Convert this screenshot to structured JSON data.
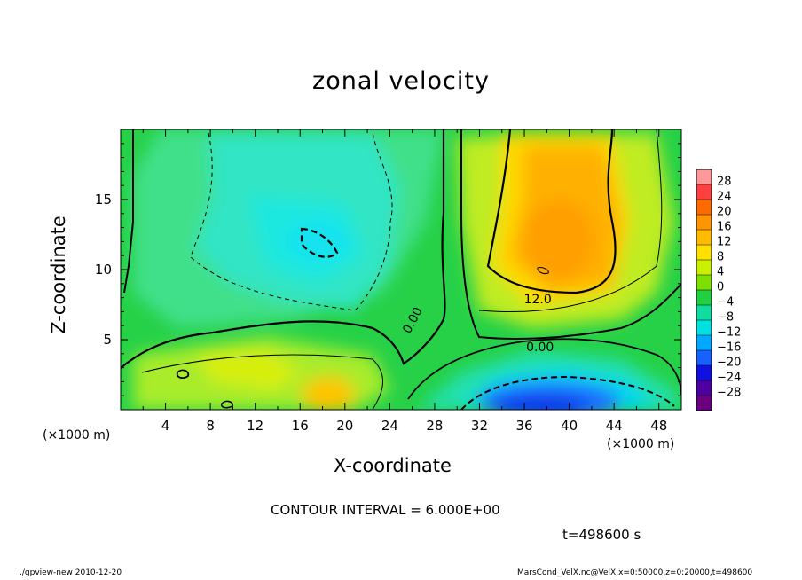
{
  "chart_data": {
    "type": "heatmap",
    "title": "zonal velocity",
    "xlabel": "X-coordinate",
    "ylabel": "Z-coordinate",
    "x_unit_left": "(×1000 m)",
    "x_unit_right": "(×1000 m)",
    "xlim": [
      0,
      50
    ],
    "ylim": [
      0,
      20
    ],
    "x_ticks": [
      4,
      8,
      12,
      16,
      20,
      24,
      28,
      32,
      36,
      40,
      44,
      48
    ],
    "y_ticks": [
      5,
      10,
      15
    ],
    "colorbar": {
      "levels": [
        28,
        24,
        20,
        16,
        12,
        8,
        4,
        0,
        -4,
        -8,
        -12,
        -16,
        -20,
        -24,
        -28
      ],
      "labels": [
        "28",
        "24",
        "20",
        "16",
        "12",
        "8",
        "4",
        "0",
        "−4",
        "−8",
        "−12",
        "−16",
        "−20",
        "−24",
        "−28"
      ],
      "colors": [
        "#ff9999",
        "#ff4040",
        "#ff6a00",
        "#ff9500",
        "#ffbb00",
        "#ffe000",
        "#c8f000",
        "#7ee000",
        "#20d040",
        "#10dca0",
        "#00e0e0",
        "#00a8ff",
        "#1860ff",
        "#1010e0",
        "#5000a0",
        "#6a0080"
      ]
    },
    "contour_labels": [
      {
        "text": "12.0",
        "x": 37.2,
        "z": 7.9
      },
      {
        "text": "0.00",
        "x": 37.4,
        "z": 4.5
      },
      {
        "text": "0.00",
        "x": 26.0,
        "z": 6.4
      }
    ],
    "regions": [
      {
        "name": "negative-core-upper",
        "x": 18,
        "z": 11.5,
        "value": -12
      },
      {
        "name": "positive-core-upper-right",
        "x": 38,
        "z": 10,
        "value": 14
      },
      {
        "name": "negative-core-lower-right",
        "x": 38,
        "z": 1,
        "value": -20
      },
      {
        "name": "positive-core-lower-center",
        "x": 18,
        "z": 1,
        "value": 12
      }
    ]
  },
  "annotations": {
    "contour_interval": "CONTOUR INTERVAL = 6.000E+00",
    "time": "t=498600 s",
    "footer_left": "./gpview-new  2010-12-20",
    "footer_right": "MarsCond_VelX.nc@VelX,x=0:50000,z=0:20000,t=498600"
  }
}
